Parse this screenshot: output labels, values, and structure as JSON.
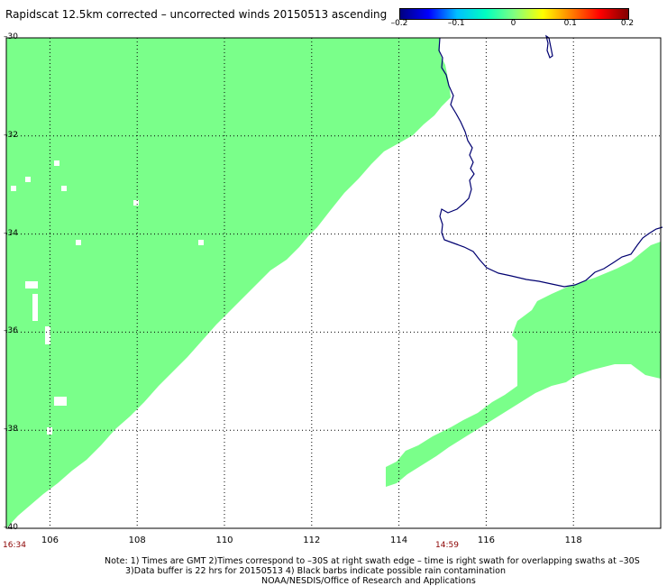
{
  "title": "Rapidscat 12.5km corrected – uncorrected winds 20150513 ascending",
  "colorbar": {
    "ticks": [
      "–0.2",
      "–0.1",
      "0",
      "0.1",
      "0.2"
    ],
    "colors": [
      "#000080",
      "#0000ff",
      "#00c0ff",
      "#00ffc0",
      "#80ff80",
      "#ffff00",
      "#ff8000",
      "#ff0000",
      "#800000"
    ]
  },
  "map": {
    "lat_labels": [
      "–30",
      "–32",
      "–34",
      "–36",
      "–38",
      "–40"
    ],
    "lon_labels": [
      "106",
      "108",
      "110",
      "112",
      "114",
      "116",
      "118"
    ],
    "swath_color": "#7aff8a",
    "coast_color": "#000070",
    "grid_color": "#000000"
  },
  "times": {
    "left": "16:34",
    "right": "14:59"
  },
  "notes": [
    "Note: 1) Times are GMT 2)Times correspond to –30S at right swath edge – time is right swath for overlapping swaths at –30S",
    "3)Data buffer is 22 hrs for 20150513 4) Black barbs indicate possible rain contamination",
    "NOAA/NESDIS/Office of Research and Applications"
  ]
}
